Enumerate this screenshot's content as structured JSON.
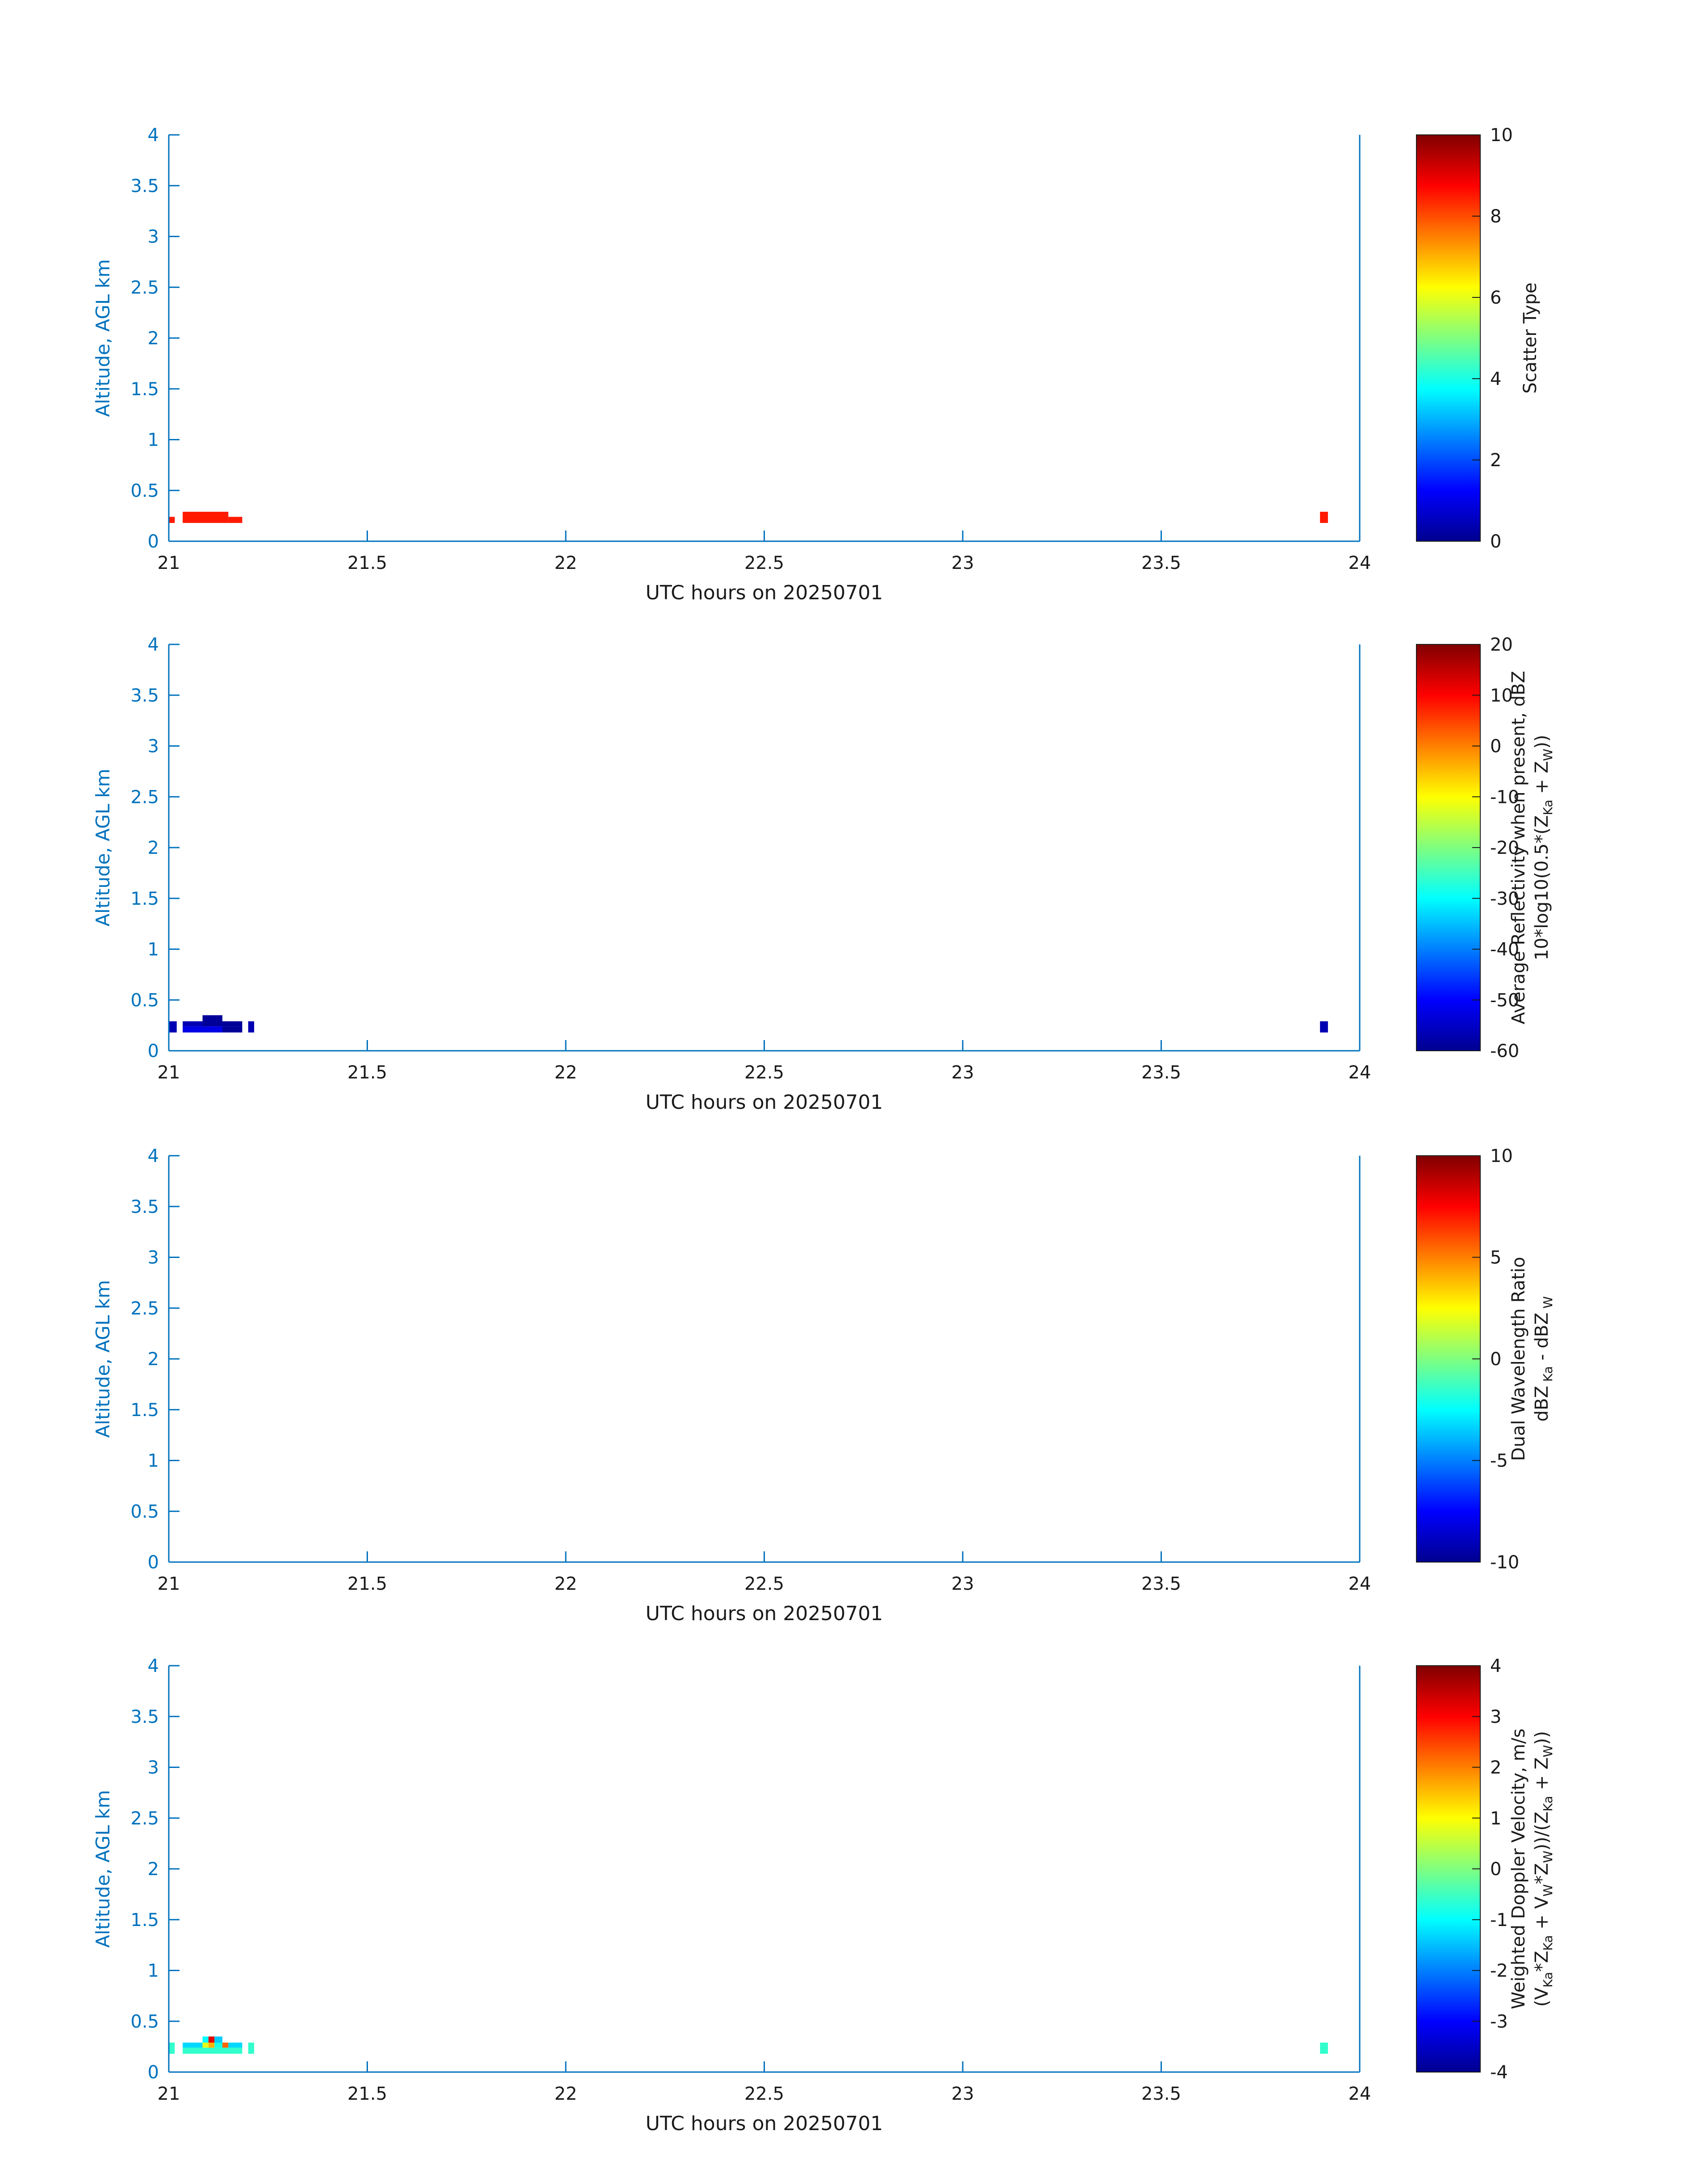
{
  "figure": {
    "background": "#ffffff",
    "axis_color": "#0072bd",
    "text_color": "#1a1a1a"
  },
  "chart_data": [
    {
      "type": "heatmap",
      "xlabel": "UTC hours on 20250701",
      "ylabel": "Altitude, AGL km",
      "xlim": [
        21,
        24
      ],
      "ylim": [
        0,
        4
      ],
      "xticks": [
        "21",
        "21.5",
        "22",
        "22.5",
        "23",
        "23.5",
        "24"
      ],
      "yticks": [
        "0",
        "0.5",
        "1",
        "1.5",
        "2",
        "2.5",
        "3",
        "3.5",
        "4"
      ],
      "colorbar": {
        "label_lines": [
          "Scatter Type"
        ],
        "range": [
          0,
          10
        ],
        "ticks": [
          "0",
          "2",
          "4",
          "6",
          "8",
          "10"
        ],
        "colormap": "jet"
      },
      "cells": [
        {
          "x0": 21.0,
          "x1": 21.015,
          "y0": 0.18,
          "y1": 0.24,
          "value": 8.5
        },
        {
          "x0": 21.035,
          "x1": 21.15,
          "y0": 0.18,
          "y1": 0.29,
          "value": 8.5
        },
        {
          "x0": 21.15,
          "x1": 21.185,
          "y0": 0.18,
          "y1": 0.24,
          "value": 8.5
        },
        {
          "x0": 23.9,
          "x1": 23.92,
          "y0": 0.18,
          "y1": 0.29,
          "value": 8.5
        }
      ]
    },
    {
      "type": "heatmap",
      "xlabel": "UTC hours on 20250701",
      "ylabel": "Altitude, AGL km",
      "xlim": [
        21,
        24
      ],
      "ylim": [
        0,
        4
      ],
      "xticks": [
        "21",
        "21.5",
        "22",
        "22.5",
        "23",
        "23.5",
        "24"
      ],
      "yticks": [
        "0",
        "0.5",
        "1",
        "1.5",
        "2",
        "2.5",
        "3",
        "3.5",
        "4"
      ],
      "colorbar": {
        "label_lines": [
          [
            {
              "t": "Average Reflectivity when present, dBZ"
            }
          ],
          [
            {
              "t": "10*log10(0.5*(Z"
            },
            {
              "t": "Ka",
              "sub": true
            },
            {
              "t": " + Z"
            },
            {
              "t": "W",
              "sub": true
            },
            {
              "t": "))"
            }
          ]
        ],
        "range": [
          -60,
          20
        ],
        "ticks": [
          "-60",
          "-50",
          "-40",
          "-30",
          "-20",
          "-10",
          "0",
          "10",
          "20"
        ],
        "colormap": "jet"
      },
      "cells": [
        {
          "x0": 21.0,
          "x1": 21.02,
          "y0": 0.18,
          "y1": 0.29,
          "value": -56
        },
        {
          "x0": 21.035,
          "x1": 21.085,
          "y0": 0.24,
          "y1": 0.29,
          "value": -56
        },
        {
          "x0": 21.085,
          "x1": 21.135,
          "y0": 0.24,
          "y1": 0.35,
          "value": -58
        },
        {
          "x0": 21.135,
          "x1": 21.185,
          "y0": 0.24,
          "y1": 0.29,
          "value": -58
        },
        {
          "x0": 21.035,
          "x1": 21.135,
          "y0": 0.18,
          "y1": 0.24,
          "value": -52
        },
        {
          "x0": 21.135,
          "x1": 21.185,
          "y0": 0.18,
          "y1": 0.24,
          "value": -58
        },
        {
          "x0": 21.2,
          "x1": 21.215,
          "y0": 0.18,
          "y1": 0.29,
          "value": -56
        },
        {
          "x0": 23.9,
          "x1": 23.92,
          "y0": 0.18,
          "y1": 0.29,
          "value": -56
        }
      ]
    },
    {
      "type": "heatmap",
      "xlabel": "UTC hours on 20250701",
      "ylabel": "Altitude, AGL km",
      "xlim": [
        21,
        24
      ],
      "ylim": [
        0,
        4
      ],
      "xticks": [
        "21",
        "21.5",
        "22",
        "22.5",
        "23",
        "23.5",
        "24"
      ],
      "yticks": [
        "0",
        "0.5",
        "1",
        "1.5",
        "2",
        "2.5",
        "3",
        "3.5",
        "4"
      ],
      "colorbar": {
        "label_lines": [
          [
            {
              "t": "Dual Wavelength Ratio"
            }
          ],
          [
            {
              "t": "dBZ"
            },
            {
              "t": " Ka",
              "sub": true
            },
            {
              "t": " - dBZ"
            },
            {
              "t": " W",
              "sub": true
            }
          ]
        ],
        "range": [
          -10,
          10
        ],
        "ticks": [
          "-10",
          "-5",
          "0",
          "5",
          "10"
        ],
        "colormap": "jet"
      },
      "cells": []
    },
    {
      "type": "heatmap",
      "xlabel": "UTC hours on 20250701",
      "ylabel": "Altitude, AGL km",
      "xlim": [
        21,
        24
      ],
      "ylim": [
        0,
        4
      ],
      "xticks": [
        "21",
        "21.5",
        "22",
        "22.5",
        "23",
        "23.5",
        "24"
      ],
      "yticks": [
        "0",
        "0.5",
        "1",
        "1.5",
        "2",
        "2.5",
        "3",
        "3.5",
        "4"
      ],
      "colorbar": {
        "label_lines": [
          [
            {
              "t": "Weighted Doppler Velocity, m/s"
            }
          ],
          [
            {
              "t": "(V"
            },
            {
              "t": "Ka",
              "sub": true
            },
            {
              "t": "*Z"
            },
            {
              "t": "Ka",
              "sub": true
            },
            {
              "t": " + V"
            },
            {
              "t": "W",
              "sub": true
            },
            {
              "t": "*Z"
            },
            {
              "t": "W",
              "sub": true
            },
            {
              "t": "))/(Z"
            },
            {
              "t": "Ka",
              "sub": true
            },
            {
              "t": " + Z"
            },
            {
              "t": "W",
              "sub": true
            },
            {
              "t": "))"
            }
          ]
        ],
        "range": [
          -4,
          4
        ],
        "ticks": [
          "-4",
          "-3",
          "-2",
          "-1",
          "0",
          "1",
          "2",
          "3",
          "4"
        ],
        "colormap": "jet"
      },
      "cells": [
        {
          "x0": 21.0,
          "x1": 21.015,
          "y0": 0.18,
          "y1": 0.29,
          "value": -0.6
        },
        {
          "x0": 21.035,
          "x1": 21.185,
          "y0": 0.18,
          "y1": 0.24,
          "value": -0.6
        },
        {
          "x0": 21.035,
          "x1": 21.085,
          "y0": 0.24,
          "y1": 0.29,
          "value": -1.3
        },
        {
          "x0": 21.085,
          "x1": 21.1,
          "y0": 0.24,
          "y1": 0.29,
          "value": 0.8
        },
        {
          "x0": 21.1,
          "x1": 21.115,
          "y0": 0.24,
          "y1": 0.29,
          "value": 1.6
        },
        {
          "x0": 21.115,
          "x1": 21.135,
          "y0": 0.24,
          "y1": 0.29,
          "value": -0.8
        },
        {
          "x0": 21.135,
          "x1": 21.15,
          "y0": 0.24,
          "y1": 0.29,
          "value": 2.2
        },
        {
          "x0": 21.15,
          "x1": 21.185,
          "y0": 0.24,
          "y1": 0.29,
          "value": -1.3
        },
        {
          "x0": 21.085,
          "x1": 21.1,
          "y0": 0.29,
          "y1": 0.35,
          "value": -1.0
        },
        {
          "x0": 21.1,
          "x1": 21.115,
          "y0": 0.29,
          "y1": 0.35,
          "value": 3.2
        },
        {
          "x0": 21.115,
          "x1": 21.135,
          "y0": 0.29,
          "y1": 0.35,
          "value": -1.4
        },
        {
          "x0": 21.2,
          "x1": 21.215,
          "y0": 0.18,
          "y1": 0.29,
          "value": -0.6
        },
        {
          "x0": 23.9,
          "x1": 23.92,
          "y0": 0.18,
          "y1": 0.29,
          "value": -0.6
        }
      ]
    }
  ]
}
